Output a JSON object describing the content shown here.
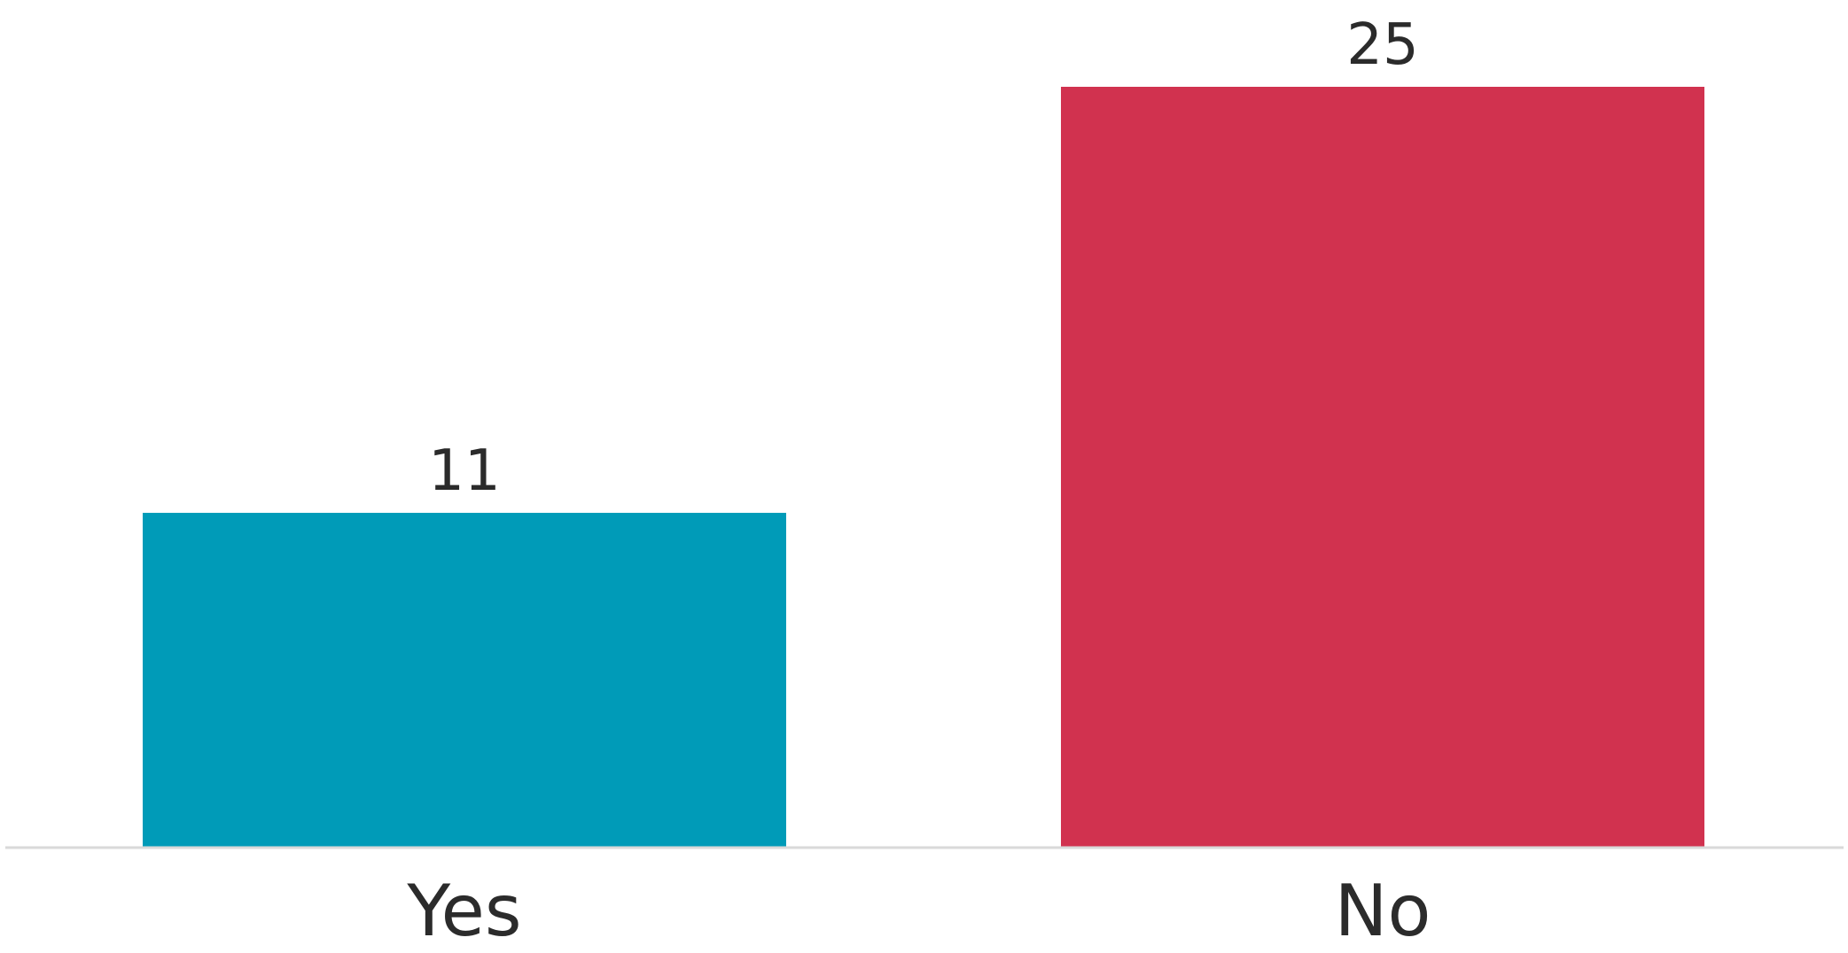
{
  "chart_data": {
    "type": "bar",
    "categories": [
      "Yes",
      "No"
    ],
    "values": [
      11,
      25
    ],
    "data_labels": [
      "11",
      "25"
    ],
    "colors": [
      "#009BB8",
      "#D1324F"
    ],
    "baseline_color": "#D9D9D9",
    "label_color": "#2B2B2B",
    "ylim": [
      0,
      25
    ],
    "grid": false,
    "legend": "none",
    "title": "",
    "xlabel": "",
    "ylabel": ""
  }
}
